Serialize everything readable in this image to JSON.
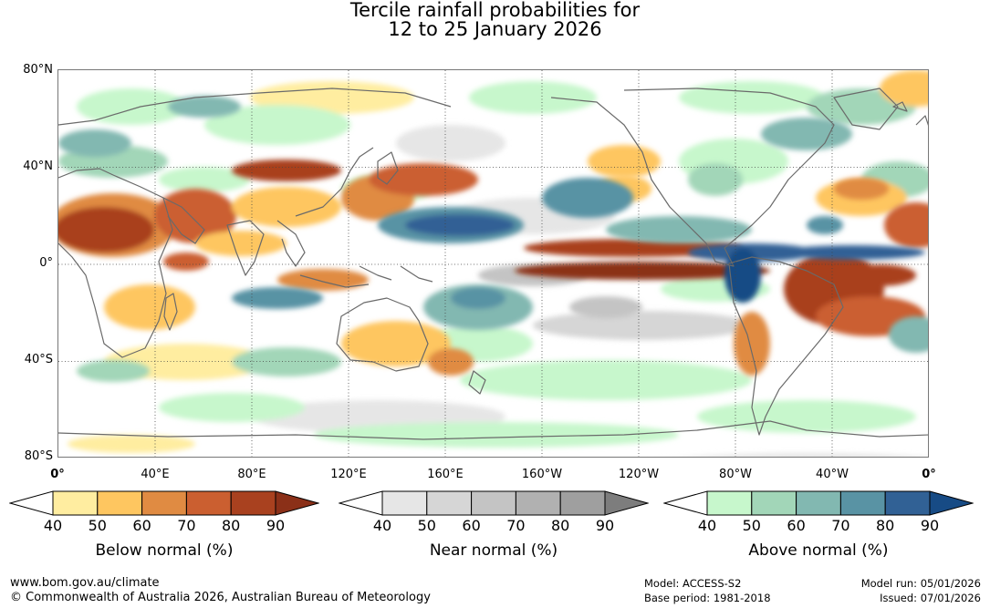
{
  "title": {
    "line1": "Tercile rainfall probabilities for",
    "line2": "12 to 25 January 2026"
  },
  "map": {
    "lat_labels": [
      "80°N",
      "40°N",
      "0°",
      "40°S",
      "80°S"
    ],
    "lon_labels": [
      "0°",
      "40°E",
      "80°E",
      "120°E",
      "160°E",
      "160°W",
      "120°W",
      "80°W",
      "40°W",
      "0°"
    ],
    "gridlines": "dotted",
    "projection": "equirectangular, 0° to 360° longitude, 80°S to 80°N"
  },
  "legends": [
    {
      "name": "Below normal (%)",
      "ticks": [
        "40",
        "50",
        "60",
        "70",
        "80",
        "90"
      ],
      "colors": [
        "#ffffff",
        "#ffeda0",
        "#fec660",
        "#e08b42",
        "#cb5f30",
        "#a9411f",
        "#8b3018"
      ]
    },
    {
      "name": "Near normal (%)",
      "ticks": [
        "40",
        "50",
        "60",
        "70",
        "80",
        "90"
      ],
      "colors": [
        "#ffffff",
        "#e6e6e6",
        "#d6d6d6",
        "#c4c4c4",
        "#b1b1b1",
        "#9f9f9f",
        "#7d7d7d"
      ]
    },
    {
      "name": "Above normal (%)",
      "ticks": [
        "40",
        "50",
        "60",
        "70",
        "80",
        "90"
      ],
      "colors": [
        "#ffffff",
        "#c7f7cc",
        "#a2d6b8",
        "#82b8b1",
        "#5993a4",
        "#316195",
        "#174b85"
      ]
    }
  ],
  "footer": {
    "website": "www.bom.gov.au/climate",
    "copyright": "© Commonwealth of Australia 2026, Australian Bureau of Meteorology",
    "model": "Model: ACCESS-S2",
    "base_period": "Base period: 1981-2018",
    "model_run": "Model run: 05/01/2026",
    "issued": "Issued: 07/01/2026"
  }
}
